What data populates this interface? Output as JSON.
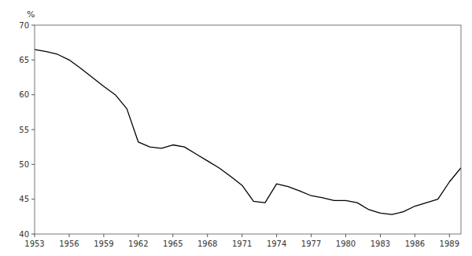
{
  "chart_data": {
    "type": "line",
    "ylabel": "%",
    "x": [
      1953,
      1954,
      1955,
      1956,
      1957,
      1958,
      1959,
      1960,
      1961,
      1962,
      1963,
      1964,
      1965,
      1966,
      1967,
      1968,
      1969,
      1970,
      1971,
      1972,
      1973,
      1974,
      1975,
      1976,
      1977,
      1978,
      1979,
      1980,
      1981,
      1982,
      1983,
      1984,
      1985,
      1986,
      1987,
      1988,
      1989,
      1990
    ],
    "values": [
      66.5,
      66.2,
      65.8,
      65.0,
      63.8,
      62.5,
      61.2,
      60.0,
      58.0,
      53.2,
      52.5,
      52.3,
      52.8,
      52.5,
      51.5,
      50.5,
      49.5,
      48.3,
      47.0,
      44.7,
      44.5,
      47.2,
      46.8,
      46.2,
      45.5,
      45.2,
      44.8,
      44.8,
      44.5,
      43.5,
      43.0,
      42.8,
      43.2,
      44.0,
      44.5,
      45.0,
      47.5,
      49.5
    ],
    "color": "#000000",
    "xlim": [
      1953,
      1990
    ],
    "ylim": [
      40,
      70
    ],
    "xticks": [
      1953,
      1956,
      1959,
      1962,
      1965,
      1968,
      1971,
      1974,
      1977,
      1980,
      1983,
      1986,
      1989
    ],
    "yticks": [
      40,
      45,
      50,
      55,
      60,
      65,
      70
    ],
    "grid": false
  }
}
